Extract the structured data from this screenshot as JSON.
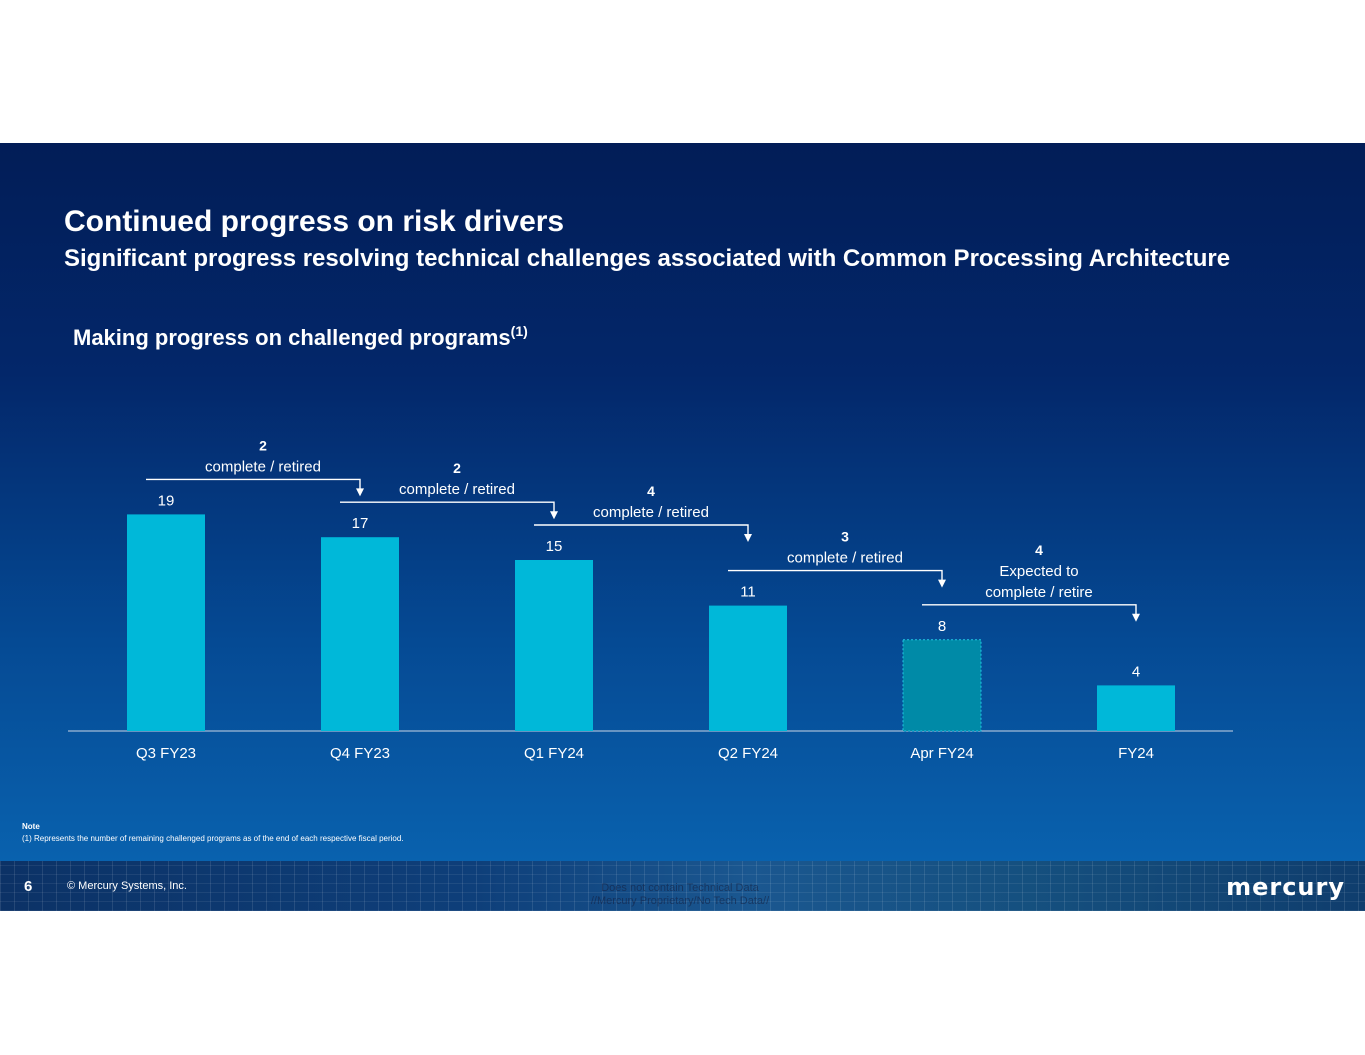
{
  "header": {
    "title": "Continued progress on risk drivers",
    "subtitle": "Significant progress resolving technical challenges associated with Common Processing Architecture",
    "section_title": "Making progress on challenged programs",
    "section_footnote_ref": "(1)"
  },
  "chart_data": {
    "type": "bar",
    "title": "Making progress on challenged programs",
    "categories": [
      "Q3 FY23",
      "Q4 FY23",
      "Q1 FY24",
      "Q2 FY24",
      "Apr FY24",
      "FY24"
    ],
    "values": [
      19,
      17,
      15,
      11,
      8,
      4
    ],
    "ylim": [
      0,
      20
    ],
    "xlabel": "",
    "ylabel": "",
    "grid": false,
    "colors": [
      "#00b8d9",
      "#00b8d9",
      "#00b8d9",
      "#00b8d9",
      "#008aa7",
      "#00b8d9"
    ],
    "annotations": [
      {
        "from": "Q3 FY23",
        "to": "Q4 FY23",
        "count": "2",
        "lines": [
          "complete / retired"
        ]
      },
      {
        "from": "Q4 FY23",
        "to": "Q1 FY24",
        "count": "2",
        "lines": [
          "complete / retired"
        ]
      },
      {
        "from": "Q1 FY24",
        "to": "Q2 FY24",
        "count": "4",
        "lines": [
          "complete / retired"
        ]
      },
      {
        "from": "Q2 FY24",
        "to": "Apr FY24",
        "count": "3",
        "lines": [
          "complete / retired"
        ]
      },
      {
        "from": "Apr FY24",
        "to": "FY24",
        "count": "4",
        "lines": [
          "Expected to",
          "complete / retire"
        ]
      }
    ]
  },
  "note": {
    "label": "Note",
    "text": "(1)    Represents the number of remaining challenged programs as of the end of each respective fiscal period."
  },
  "footer": {
    "page_number": "6",
    "copyright": "© Mercury Systems, Inc.",
    "disclaimer_line1": "Does not contain Technical Data",
    "disclaimer_line2": "//Mercury Proprietary/No Tech Data//",
    "logo": "mercury"
  },
  "colors": {
    "bar": "#00b8d9",
    "bar_projected": "#008aa7",
    "text": "#ffffff"
  }
}
